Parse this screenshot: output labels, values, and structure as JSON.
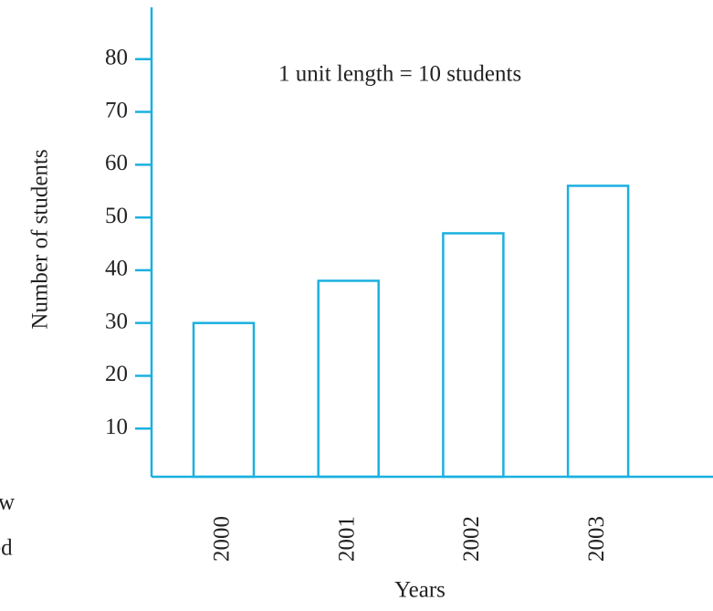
{
  "chart_data": {
    "type": "bar",
    "annotation": "1 unit length  = 10 students",
    "x_label": "Years",
    "y_label": "Number of students",
    "categories": [
      "2000",
      "2001",
      "2002",
      "2003"
    ],
    "values": [
      30,
      38,
      47,
      56
    ],
    "color": "#1ab0e0",
    "ylim": [
      0,
      90
    ],
    "yticks": [
      10,
      20,
      30,
      40,
      50,
      60,
      70,
      80
    ],
    "side_text": [
      "w",
      "ed"
    ]
  }
}
